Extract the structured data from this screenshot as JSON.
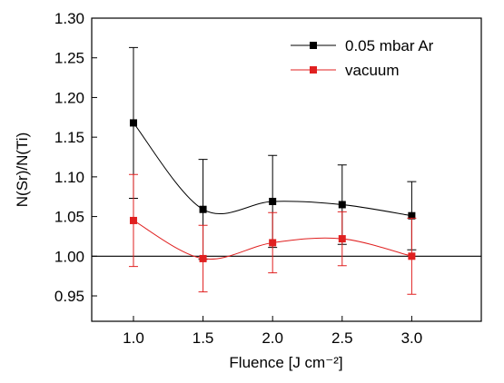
{
  "chart_data": {
    "type": "line",
    "x_label": "Fluence [J cm⁻²]",
    "y_label": "N(Sr)/N(Ti)",
    "x": [
      1.0,
      1.5,
      2.0,
      2.5,
      3.0
    ],
    "series": [
      {
        "name": "0.05 mbar Ar",
        "color": "#000000",
        "values": [
          1.168,
          1.059,
          1.069,
          1.065,
          1.051
        ],
        "errors": [
          0.095,
          0.063,
          0.058,
          0.05,
          0.043
        ]
      },
      {
        "name": "vacuum",
        "color": "#e02020",
        "values": [
          1.045,
          0.997,
          1.017,
          1.022,
          1.0
        ],
        "errors": [
          0.058,
          0.042,
          0.038,
          0.034,
          0.048
        ]
      }
    ],
    "xlim": [
      0.7,
      3.5
    ],
    "ylim": [
      0.918,
      1.3
    ],
    "xticks": [
      {
        "value": 1.0,
        "label": "1.0"
      },
      {
        "value": 1.5,
        "label": "1.5"
      },
      {
        "value": 2.0,
        "label": "2.0"
      },
      {
        "value": 2.5,
        "label": "2.5"
      },
      {
        "value": 3.0,
        "label": "3.0"
      }
    ],
    "yticks": [
      {
        "value": 0.95,
        "label": "0.95"
      },
      {
        "value": 1.0,
        "label": "1.00"
      },
      {
        "value": 1.05,
        "label": "1.05"
      },
      {
        "value": 1.1,
        "label": "1.10"
      },
      {
        "value": 1.15,
        "label": "1.15"
      },
      {
        "value": 1.2,
        "label": "1.20"
      },
      {
        "value": 1.25,
        "label": "1.25"
      },
      {
        "value": 1.3,
        "label": "1.30"
      }
    ],
    "reference_line": 1.0,
    "legend": "upper right"
  }
}
